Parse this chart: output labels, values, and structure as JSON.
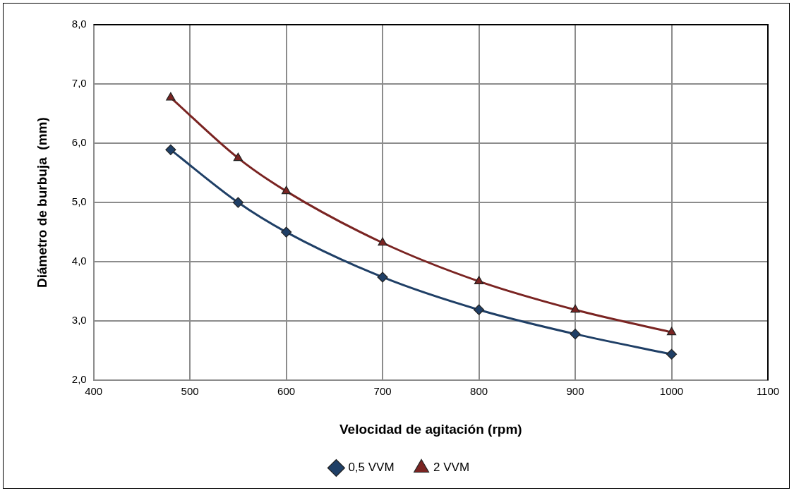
{
  "chart_data": {
    "type": "line",
    "xlabel": "Velocidad de agitación (rpm)",
    "ylabel": "Diámetro de burbuja  (mm)",
    "x": [
      480,
      550,
      600,
      700,
      800,
      900,
      1000
    ],
    "series": [
      {
        "name": "0,5 VVM",
        "color": "#1f3f66",
        "marker": "diamond",
        "values": [
          5.89,
          5.0,
          4.5,
          3.74,
          3.19,
          2.78,
          2.44
        ]
      },
      {
        "name": "2 VVM",
        "color": "#7a2422",
        "marker": "triangle",
        "values": [
          6.77,
          5.75,
          5.19,
          4.32,
          3.67,
          3.19,
          2.81
        ]
      }
    ],
    "xlim": [
      400,
      1100
    ],
    "xticks": [
      400,
      500,
      600,
      700,
      800,
      900,
      1000,
      1100
    ],
    "ylim": [
      2,
      8
    ],
    "yticks": [
      {
        "value": 2,
        "label": "2,0"
      },
      {
        "value": 3,
        "label": "3,0"
      },
      {
        "value": 4,
        "label": "4,0"
      },
      {
        "value": 5,
        "label": "5,0"
      },
      {
        "value": 6,
        "label": "6,0"
      },
      {
        "value": 7,
        "label": "7,0"
      },
      {
        "value": 8,
        "label": "8,0"
      }
    ],
    "grid": true,
    "legend": "bottom",
    "line_style": "solid"
  }
}
